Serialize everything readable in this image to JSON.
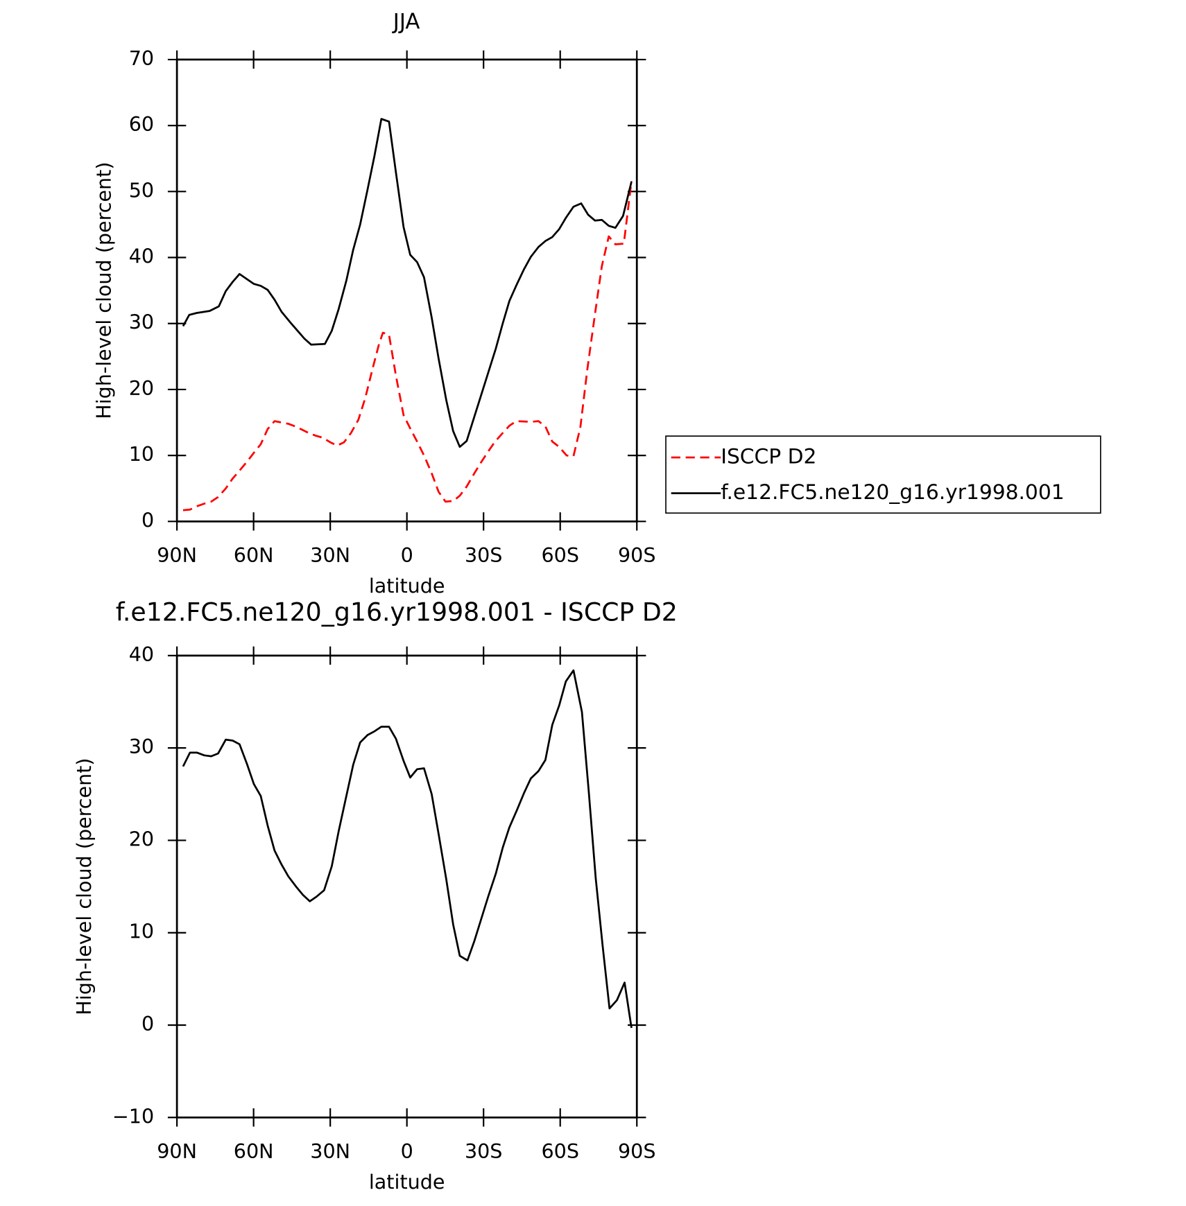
{
  "chart_data": [
    {
      "type": "line",
      "title": "JJA",
      "x_label": "latitude",
      "y_label": "High-level cloud (percent)",
      "xlim": [
        90,
        -90
      ],
      "xticks": [
        {
          "value": 90,
          "label": "90N"
        },
        {
          "value": 60,
          "label": "60N"
        },
        {
          "value": 30,
          "label": "30N"
        },
        0,
        {
          "value": -30,
          "label": "30S"
        },
        {
          "value": -60,
          "label": "60S"
        },
        {
          "value": -90,
          "label": "90S"
        }
      ],
      "ylim": [
        0,
        70
      ],
      "yticks": [
        0,
        10,
        20,
        30,
        40,
        50,
        60,
        70
      ],
      "legend": "right",
      "series": [
        {
          "name": "ISCCP D2",
          "color": "#ff0000",
          "dashed": true,
          "x": [
            87.6,
            84.9,
            82.2,
            79.3,
            76.6,
            73.9,
            70.9,
            68.2,
            65.5,
            62.5,
            59.9,
            57.2,
            54.5,
            51.8,
            46.4,
            43.7,
            41.0,
            38.4,
            35.7,
            33.0,
            30.0,
            27.3,
            24.6,
            21.9,
            19.0,
            16.3,
            13.6,
            10.9,
            9.4,
            7.0,
            4.3,
            1.3,
            -1.3,
            -4.0,
            -6.7,
            -9.7,
            -12.4,
            -15.1,
            -18.1,
            -20.7,
            -23.4,
            -26.4,
            -29.1,
            -31.8,
            -34.5,
            -37.5,
            -40.1,
            -42.8,
            -48.5,
            -51.5,
            -54.2,
            -56.9,
            -59.6,
            -62.5,
            -65.2,
            -67.9,
            -70.6,
            -73.6,
            -76.3,
            -79.0,
            -81.6,
            -84.9,
            -87.9
          ],
          "values": [
            1.7,
            1.8,
            2.3,
            2.7,
            3.0,
            3.7,
            5.0,
            6.5,
            7.7,
            9.1,
            10.4,
            11.7,
            14.0,
            15.2,
            14.8,
            14.4,
            13.9,
            13.4,
            13.0,
            12.7,
            12.0,
            11.5,
            12.0,
            13.4,
            15.4,
            18.7,
            22.9,
            26.9,
            28.6,
            28.3,
            22.1,
            16.1,
            14.1,
            12.1,
            10.0,
            7.3,
            4.5,
            3.0,
            3.1,
            3.9,
            5.3,
            7.3,
            9.0,
            10.6,
            12.1,
            13.4,
            14.5,
            15.2,
            15.1,
            15.2,
            14.4,
            12.1,
            11.3,
            10.0,
            9.9,
            14.3,
            23.0,
            31.4,
            38.7,
            43.2,
            42.0,
            42.1,
            51.6
          ]
        },
        {
          "name": "f.e12.FC5.ne120_g16.yr1998.001",
          "color": "#000000",
          "dashed": false,
          "x": [
            87.6,
            85.2,
            82.2,
            77.2,
            73.6,
            70.9,
            68.2,
            65.5,
            62.5,
            59.9,
            57.2,
            54.5,
            51.8,
            49.1,
            45.5,
            42.8,
            40.1,
            37.5,
            32.1,
            29.4,
            26.7,
            23.7,
            21.0,
            18.3,
            15.4,
            12.7,
            10.0,
            7.0,
            4.3,
            1.3,
            -1.3,
            -4.0,
            -6.7,
            -9.7,
            -12.4,
            -15.4,
            -18.1,
            -20.7,
            -23.4,
            -29.1,
            -34.8,
            -37.5,
            -40.1,
            -43.1,
            -45.8,
            -48.5,
            -51.5,
            -54.2,
            -56.9,
            -59.6,
            -62.2,
            -65.2,
            -68.2,
            -70.9,
            -73.6,
            -76.3,
            -79.0,
            -81.6,
            -84.6,
            -87.9
          ],
          "values": [
            29.6,
            31.3,
            31.6,
            31.9,
            32.6,
            34.9,
            36.3,
            37.5,
            36.7,
            36.0,
            35.7,
            35.1,
            33.6,
            31.8,
            30.1,
            28.9,
            27.7,
            26.8,
            26.9,
            28.9,
            32.2,
            36.5,
            41.2,
            45.0,
            50.3,
            55.4,
            61.0,
            60.6,
            52.9,
            44.6,
            40.4,
            39.3,
            37.0,
            30.9,
            24.7,
            18.4,
            13.7,
            11.3,
            12.2,
            19.2,
            26.2,
            30.0,
            33.4,
            36.0,
            38.2,
            40.1,
            41.6,
            42.5,
            43.1,
            44.3,
            46.0,
            47.7,
            48.2,
            46.5,
            45.6,
            45.7,
            44.8,
            44.5,
            46.3,
            51.5
          ]
        }
      ]
    },
    {
      "type": "line",
      "title": "f.e12.FC5.ne120_g16.yr1998.001 - ISCCP D2",
      "x_label": "latitude",
      "y_label": "High-level cloud (percent)",
      "xlim": [
        90,
        -90
      ],
      "xticks": [
        {
          "value": 90,
          "label": "90N"
        },
        {
          "value": 60,
          "label": "60N"
        },
        {
          "value": 30,
          "label": "30N"
        },
        0,
        {
          "value": -30,
          "label": "30S"
        },
        {
          "value": -60,
          "label": "60S"
        },
        {
          "value": -90,
          "label": "90S"
        }
      ],
      "ylim": [
        -10,
        40
      ],
      "yticks": [
        {
          "value": -10,
          "label": "−10"
        },
        0,
        10,
        20,
        30,
        40
      ],
      "series": [
        {
          "color": "#000000",
          "dashed": false,
          "x": [
            87.6,
            84.9,
            82.2,
            79.3,
            76.6,
            73.9,
            70.9,
            68.2,
            65.5,
            62.5,
            59.9,
            57.2,
            54.5,
            51.8,
            49.1,
            46.4,
            43.4,
            40.7,
            38.0,
            35.4,
            32.4,
            29.4,
            26.7,
            23.7,
            21.0,
            18.3,
            15.4,
            12.7,
            10.0,
            7.0,
            4.3,
            1.3,
            -1.3,
            -4.0,
            -6.7,
            -9.7,
            -12.4,
            -15.4,
            -18.1,
            -20.7,
            -23.7,
            -26.4,
            -29.1,
            -31.8,
            -34.8,
            -37.5,
            -40.1,
            -43.1,
            -45.8,
            -48.5,
            -51.5,
            -54.2,
            -56.9,
            -59.6,
            -62.2,
            -65.2,
            -68.5,
            -71.2,
            -73.9,
            -76.6,
            -79.3,
            -82.2,
            -85.2,
            -87.9
          ],
          "values": [
            28.0,
            29.5,
            29.5,
            29.2,
            29.1,
            29.4,
            30.9,
            30.8,
            30.4,
            28.2,
            26.1,
            24.8,
            21.6,
            18.9,
            17.4,
            16.1,
            15.0,
            14.1,
            13.4,
            13.9,
            14.6,
            17.2,
            21.0,
            24.8,
            28.2,
            30.6,
            31.4,
            31.8,
            32.3,
            32.3,
            31.0,
            28.6,
            26.8,
            27.7,
            27.8,
            25.0,
            20.7,
            15.8,
            10.9,
            7.5,
            7.0,
            9.1,
            11.5,
            13.9,
            16.4,
            19.2,
            21.4,
            23.3,
            25.1,
            26.7,
            27.5,
            28.7,
            32.5,
            34.6,
            37.2,
            38.4,
            33.9,
            25.2,
            15.9,
            8.6,
            1.8,
            2.7,
            4.6,
            -0.3
          ]
        }
      ]
    }
  ]
}
